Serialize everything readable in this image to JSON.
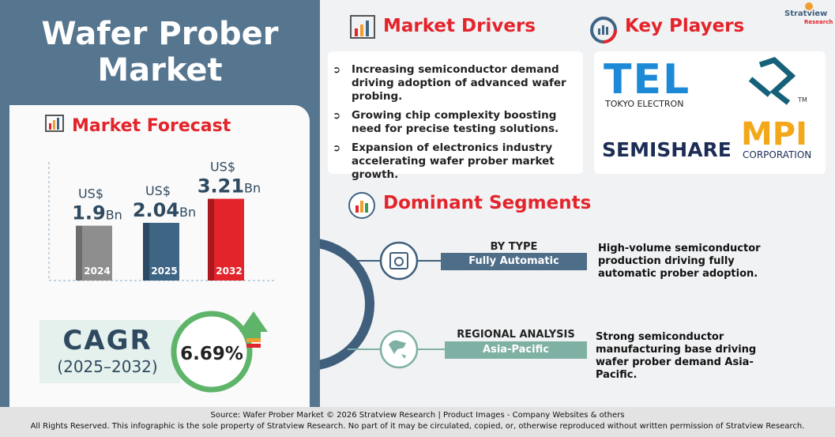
{
  "header": {
    "title": "Wafer Prober Market"
  },
  "forecast": {
    "title": "Market Forecast",
    "bars": [
      {
        "year": "2024",
        "currency": "US$",
        "value": 1.9,
        "unit": "Bn",
        "color": "#8e8e8e",
        "side": "#6d6d6d"
      },
      {
        "year": "2025",
        "currency": "US$",
        "value": 2.04,
        "unit": "Bn",
        "color": "#3f6584",
        "side": "#2c4a63"
      },
      {
        "year": "2032",
        "currency": "US$",
        "value": 3.21,
        "unit": "Bn",
        "color": "#e3242b",
        "side": "#a8181d"
      }
    ]
  },
  "cagr": {
    "label": "CAGR",
    "period": "(2025–2032)",
    "value": "6.69%"
  },
  "drivers": {
    "title": "Market Drivers",
    "items": [
      "Increasing semiconductor demand driving adoption of advanced wafer probing.",
      "Growing chip complexity boosting need for precise testing solutions.",
      "Expansion of electronics industry accelerating wafer prober market growth."
    ]
  },
  "key_players": {
    "title": "Key Players",
    "logos": [
      {
        "name": "TEL",
        "subtitle": "TOKYO ELECTRON"
      },
      {
        "mark": "TM"
      },
      {
        "name": "SEMISHARE"
      },
      {
        "name": "MPI",
        "subtitle": "CORPORATION"
      }
    ]
  },
  "segments": {
    "title": "Dominant Segments",
    "items": [
      {
        "heading": "BY TYPE",
        "label": "Fully Automatic",
        "description": "High-volume semiconductor production driving fully automatic prober adoption."
      },
      {
        "heading": "REGIONAL ANALYSIS",
        "label": "Asia-Pacific",
        "description": "Strong semiconductor manufacturing base driving wafer prober demand Asia-Pacific."
      }
    ]
  },
  "brand": {
    "name": "Stratview",
    "sub": "Research"
  },
  "footer": {
    "source": "Source:  Wafer Prober Market © 2026 Stratview Research | Product Images  - Company Websites & others",
    "rights": "All Rights Reserved. This infographic is the sole property of Stratview Research. No part of it may be circulated, copied, or, otherwise reproduced without written permission of Stratview Research."
  }
}
